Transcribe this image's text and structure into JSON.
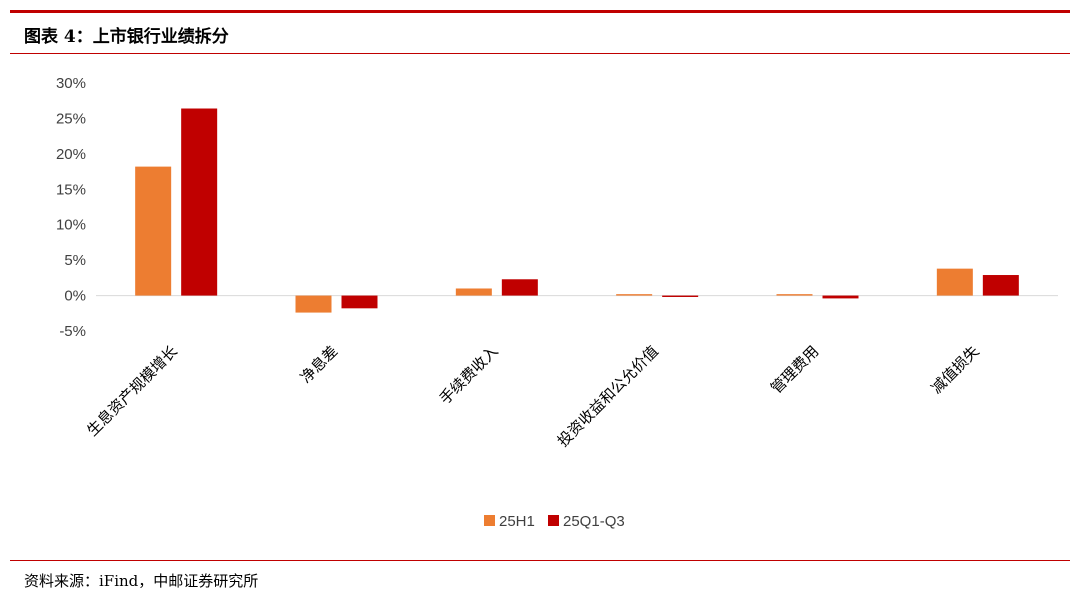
{
  "header": {
    "title": "图表 4：上市银行业绩拆分"
  },
  "footer": {
    "source": "资料来源：iFind，中邮证券研究所"
  },
  "chart_data": {
    "type": "bar",
    "categories": [
      "生息资产规模增长",
      "净息差",
      "手续费收入",
      "投资收益和公允价值",
      "管理费用",
      "减值损失"
    ],
    "series": [
      {
        "name": "25H1",
        "color": "#ed7d31",
        "values": [
          18.2,
          -2.4,
          1.0,
          0.2,
          0.2,
          3.8
        ]
      },
      {
        "name": "25Q1-Q3",
        "color": "#c00000",
        "values": [
          26.4,
          -1.8,
          2.3,
          -0.2,
          -0.4,
          2.9
        ]
      }
    ],
    "yticks": [
      "30%",
      "25%",
      "20%",
      "15%",
      "10%",
      "5%",
      "0%",
      "-5%"
    ],
    "ylim": [
      -5,
      30
    ],
    "legend_position": "bottom-center",
    "grid": false
  }
}
